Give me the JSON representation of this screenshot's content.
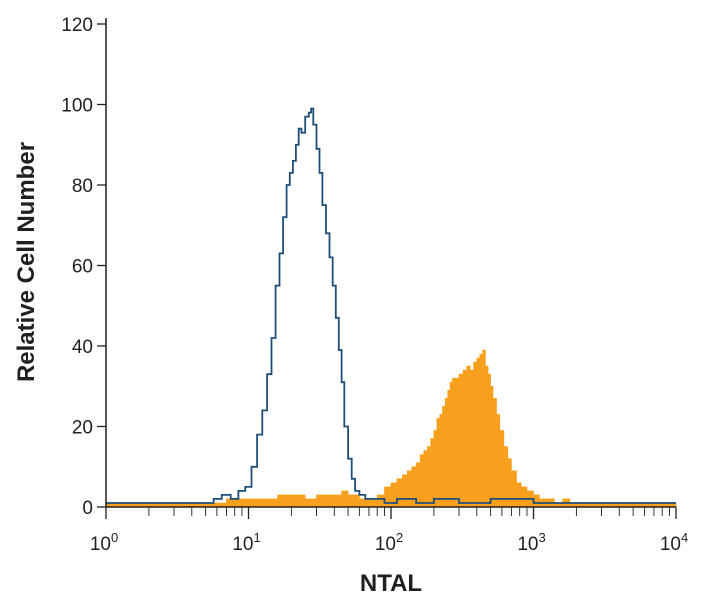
{
  "chart_data": {
    "type": "area",
    "xlabel": "NTAL",
    "ylabel": "Relative Cell Number",
    "x_scale": "log",
    "xlim": [
      1,
      10000
    ],
    "ylim": [
      0,
      120
    ],
    "grid": false,
    "x_ticks": [
      {
        "base": "10",
        "exp": "0"
      },
      {
        "base": "10",
        "exp": "1"
      },
      {
        "base": "10",
        "exp": "2"
      },
      {
        "base": "10",
        "exp": "3"
      },
      {
        "base": "10",
        "exp": "4"
      }
    ],
    "y_ticks": [
      "0",
      "20",
      "40",
      "60",
      "80",
      "100",
      "120"
    ],
    "series": [
      {
        "style": "outline",
        "color": "#1f4e79",
        "x": [
          1,
          5,
          5.7,
          6.5,
          7.5,
          8.5,
          9.5,
          10.5,
          11.5,
          12.5,
          13.5,
          14.5,
          15.5,
          16.5,
          17.5,
          18.5,
          19.5,
          20.5,
          21.5,
          22.5,
          23.5,
          25,
          26.5,
          27.5,
          28.5,
          30,
          31.5,
          33,
          35,
          37,
          39,
          41,
          43,
          45,
          47,
          50,
          53,
          56,
          60,
          66,
          75,
          90,
          110,
          150,
          200,
          300,
          500,
          1000,
          10000
        ],
        "y": [
          1,
          1,
          2,
          3,
          2,
          4,
          5,
          10,
          18,
          24,
          33,
          42,
          55,
          63,
          72,
          80,
          83,
          86,
          90,
          94,
          93,
          97,
          98,
          99,
          95,
          89,
          83,
          75,
          68,
          62,
          55,
          47,
          39,
          31,
          20,
          12,
          7,
          4,
          3,
          2,
          2,
          1,
          2,
          1,
          2,
          1,
          2,
          1,
          1
        ]
      },
      {
        "style": "filled",
        "color": "#f6a01e",
        "x": [
          1,
          6,
          7,
          9,
          12,
          16,
          20,
          25,
          30,
          35,
          40,
          45,
          50,
          55,
          60,
          70,
          80,
          90,
          100,
          110,
          120,
          130,
          140,
          150,
          160,
          170,
          180,
          190,
          200,
          210,
          220,
          230,
          240,
          250,
          260,
          270,
          280,
          300,
          320,
          340,
          360,
          380,
          400,
          420,
          440,
          460,
          480,
          500,
          520,
          550,
          580,
          620,
          660,
          700,
          760,
          820,
          900,
          1000,
          1100,
          1250,
          1400,
          1600,
          1800,
          2000,
          10000
        ],
        "y": [
          1,
          1,
          2,
          2,
          2,
          3,
          3,
          2,
          3,
          3,
          3,
          4,
          3,
          3,
          2,
          2,
          3,
          5,
          6,
          7,
          8,
          9,
          10,
          11,
          13,
          14,
          15,
          17,
          19,
          22,
          23,
          25,
          27,
          29,
          31,
          32,
          32,
          33,
          34,
          35,
          34,
          36,
          37,
          38,
          39,
          35,
          33,
          30,
          27,
          23,
          19,
          15,
          12,
          9,
          6,
          5,
          4,
          3,
          2,
          2,
          1,
          2,
          1,
          1,
          1
        ]
      }
    ]
  }
}
